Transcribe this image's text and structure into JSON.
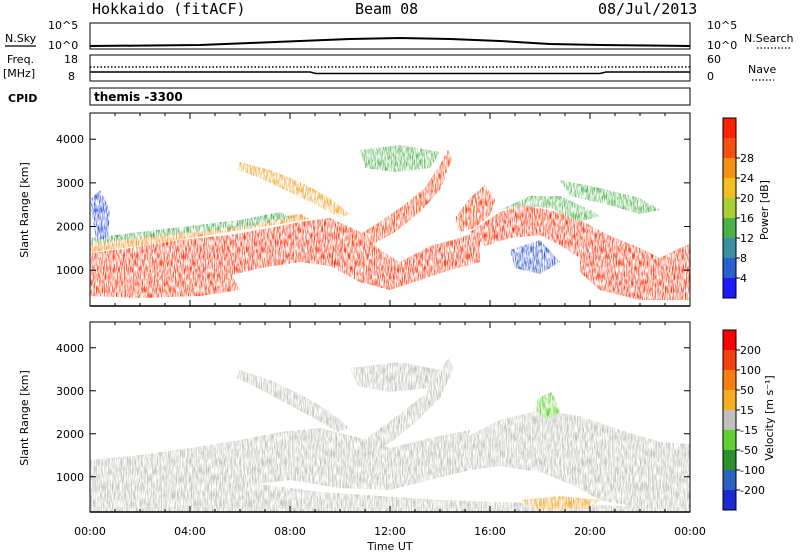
{
  "header": {
    "station": "Hokkaido (fitACF)",
    "beam": "Beam 08",
    "date": "08/Jul/2013"
  },
  "strips": {
    "nsky_label": "N.Sky",
    "nsky_ticks": [
      "10^5",
      "10^0"
    ],
    "nsearch_label": "N.Search",
    "nsearch_ticks": [
      "10^5",
      "10^0"
    ],
    "freq_label": "Freq.",
    "freq_unit": "[MHz]",
    "freq_ticks": [
      "18",
      "8"
    ],
    "nave_label": "Nave",
    "nave_ticks": [
      "60",
      "0"
    ],
    "cpid_label": "CPID",
    "cpid_value": "themis -3300"
  },
  "chart_data": [
    {
      "type": "heatmap",
      "name": "power-panel",
      "ylabel": "Slant Range [km]",
      "xlabel": "",
      "xlim": [
        0,
        24
      ],
      "ylim": [
        180,
        4600
      ],
      "yticks": [
        "1000",
        "2000",
        "3000",
        "4000"
      ],
      "ytick_values": [
        1000,
        2000,
        3000,
        4000
      ],
      "colorbar": {
        "label": "Power [dB]",
        "ticks": [
          "4",
          "8",
          "12",
          "16",
          "20",
          "24",
          "28"
        ],
        "colors": [
          "#1a1aff",
          "#2a5fd0",
          "#3a8fa0",
          "#4ab04a",
          "#a8d030",
          "#f0c020",
          "#f59010",
          "#f55010",
          "#ff2000"
        ]
      },
      "features": [
        {
          "kind": "band",
          "t": [
            0,
            6
          ],
          "range": [
            800,
            1400
          ],
          "value": 25
        },
        {
          "kind": "band",
          "t": [
            6,
            10
          ],
          "range": [
            1200,
            2000
          ],
          "value": 27
        },
        {
          "kind": "band",
          "t": [
            10,
            14
          ],
          "range": [
            1100,
            1700
          ],
          "value": 28
        },
        {
          "kind": "band",
          "t": [
            14,
            18
          ],
          "range": [
            1700,
            2300
          ],
          "value": 27
        },
        {
          "kind": "band",
          "t": [
            18,
            21
          ],
          "range": [
            1300,
            2100
          ],
          "value": 26
        },
        {
          "kind": "band",
          "t": [
            21,
            24
          ],
          "range": [
            300,
            1100
          ],
          "value": 28
        },
        {
          "kind": "arc",
          "t": [
            7,
            10
          ],
          "range": [
            3100,
            2200
          ],
          "value": 20
        },
        {
          "kind": "arc",
          "t": [
            12,
            15
          ],
          "range": [
            2000,
            3400
          ],
          "value": 24
        },
        {
          "kind": "arc",
          "t": [
            15,
            17
          ],
          "range": [
            2800,
            2100
          ],
          "value": 26
        }
      ]
    },
    {
      "type": "heatmap",
      "name": "velocity-panel",
      "ylabel": "Slant Range [km]",
      "xlabel": "Time UT",
      "xticks": [
        "00:00",
        "04:00",
        "08:00",
        "12:00",
        "16:00",
        "20:00",
        "00:00"
      ],
      "xlim": [
        0,
        24
      ],
      "ylim": [
        180,
        4600
      ],
      "yticks": [
        "1000",
        "2000",
        "3000",
        "4000"
      ],
      "ytick_values": [
        1000,
        2000,
        3000,
        4000
      ],
      "colorbar": {
        "label": "Velocity [m s⁻¹]",
        "ticks": [
          "200",
          "100",
          "50",
          "15",
          "-15",
          "-50",
          "-100",
          "-200"
        ],
        "colors": [
          "#1a2ad0",
          "#2a60c0",
          "#2a9030",
          "#60d030",
          "#c0c0b8",
          "#f5b020",
          "#f58010",
          "#f54010",
          "#ff0000"
        ]
      },
      "dominant_value": "-15 to 15"
    }
  ],
  "colors": {
    "frame": "#000000",
    "ground_scatter": "#c0c0b8"
  }
}
